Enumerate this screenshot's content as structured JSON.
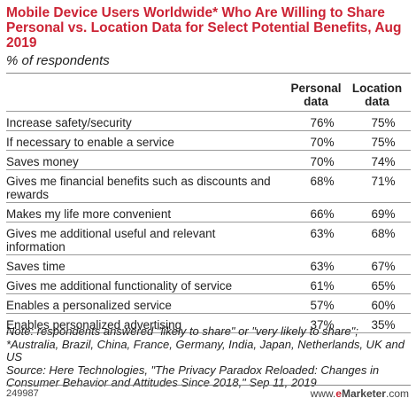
{
  "title": "Mobile Device Users Worldwide* Who Are Willing to Share Personal vs. Location Data for Select Potential Benefits, Aug 2019",
  "subtitle": "% of respondents",
  "chart_data": {
    "type": "table",
    "columns": [
      "",
      "Personal data",
      "Location data"
    ],
    "rows": [
      {
        "label": "Increase safety/security",
        "personal": "76%",
        "location": "75%"
      },
      {
        "label": "If necessary to enable a service",
        "personal": "70%",
        "location": "75%"
      },
      {
        "label": "Saves money",
        "personal": "70%",
        "location": "74%"
      },
      {
        "label": "Gives me financial benefits such as discounts and rewards",
        "personal": "68%",
        "location": "71%"
      },
      {
        "label": "Makes my life more convenient",
        "personal": "66%",
        "location": "69%"
      },
      {
        "label": "Gives me additional useful and relevant information",
        "personal": "63%",
        "location": "68%"
      },
      {
        "label": "Saves time",
        "personal": "63%",
        "location": "67%"
      },
      {
        "label": "Gives me additional functionality of service",
        "personal": "61%",
        "location": "65%"
      },
      {
        "label": "Enables a personalized service",
        "personal": "57%",
        "location": "60%"
      },
      {
        "label": "Enables personalized advertising",
        "personal": "37%",
        "location": "35%"
      }
    ]
  },
  "notes": "Note: respondents answered \"likely to share\" or \"very likely to share\"; *Australia, Brazil, China, France, Germany, India, Japan, Netherlands, UK and US",
  "source": "Source: Here Technologies, \"The Privacy Paradox Reloaded: Changes in Consumer Behavior and Attitudes Since 2018,\" Sep 11, 2019",
  "chart_id": "249987",
  "brand": {
    "prefix": "www.",
    "e": "e",
    "name": "Marketer",
    "suffix": ".com"
  },
  "colors": {
    "title": "#cc2334",
    "text": "#222222",
    "rule": "#9a9a9a"
  }
}
